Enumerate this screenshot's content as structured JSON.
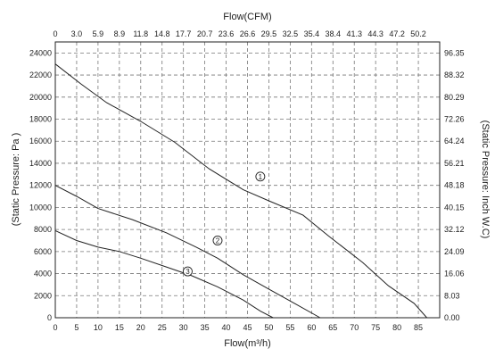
{
  "chart_data": {
    "type": "line",
    "title": "",
    "xlabel": "Flow(m³/h)",
    "x2label": "Flow(CFM)",
    "ylabel": "(Static Pressure: Pa )",
    "y2label": "(Static Pressure: Inch W.C)",
    "xlim": [
      0,
      90
    ],
    "ylim": [
      0,
      25000
    ],
    "grid": true,
    "x_ticks": [
      "0",
      "5",
      "10",
      "15",
      "20",
      "25",
      "30",
      "35",
      "40",
      "45",
      "50",
      "55",
      "60",
      "65",
      "70",
      "75",
      "80",
      "85"
    ],
    "x_tick_values": [
      0,
      5,
      10,
      15,
      20,
      25,
      30,
      35,
      40,
      45,
      50,
      55,
      60,
      65,
      70,
      75,
      80,
      85
    ],
    "x2_ticks": [
      "0",
      "3.0",
      "5.9",
      "8.9",
      "11.8",
      "14.8",
      "17.7",
      "20.7",
      "23.6",
      "26.6",
      "29.5",
      "32.5",
      "35.4",
      "38.4",
      "41.3",
      "44.3",
      "47.2",
      "50.2"
    ],
    "y_ticks": [
      "0",
      "2000",
      "4000",
      "6000",
      "8000",
      "10000",
      "12000",
      "14000",
      "16000",
      "18000",
      "20000",
      "22000",
      "24000"
    ],
    "y_tick_values": [
      0,
      2000,
      4000,
      6000,
      8000,
      10000,
      12000,
      14000,
      16000,
      18000,
      20000,
      22000,
      24000
    ],
    "y2_ticks": [
      "0.00",
      "8.03",
      "16.06",
      "24.09",
      "32.12",
      "40.15",
      "48.18",
      "56.21",
      "64.24",
      "72.26",
      "80.29",
      "88.32",
      "96.35"
    ],
    "series": [
      {
        "name": "①",
        "points": [
          [
            0,
            23000
          ],
          [
            6,
            21200
          ],
          [
            12,
            19500
          ],
          [
            20,
            17800
          ],
          [
            28,
            15900
          ],
          [
            36,
            13500
          ],
          [
            44,
            11600
          ],
          [
            50,
            10600
          ],
          [
            58,
            9300
          ],
          [
            64,
            7400
          ],
          [
            72,
            5000
          ],
          [
            78,
            2900
          ],
          [
            84,
            1300
          ],
          [
            87,
            0
          ]
        ]
      },
      {
        "name": "②",
        "points": [
          [
            0,
            12000
          ],
          [
            5,
            11000
          ],
          [
            10,
            9900
          ],
          [
            18,
            8900
          ],
          [
            26,
            7700
          ],
          [
            33,
            6400
          ],
          [
            38,
            5400
          ],
          [
            44,
            3900
          ],
          [
            50,
            2600
          ],
          [
            56,
            1300
          ],
          [
            62,
            0
          ]
        ]
      },
      {
        "name": "③",
        "points": [
          [
            0,
            7900
          ],
          [
            5,
            7000
          ],
          [
            10,
            6400
          ],
          [
            15,
            6000
          ],
          [
            20,
            5400
          ],
          [
            26,
            4600
          ],
          [
            32,
            3800
          ],
          [
            38,
            2800
          ],
          [
            44,
            1600
          ],
          [
            48,
            600
          ],
          [
            51,
            0
          ]
        ]
      }
    ],
    "markers": [
      {
        "label": "①",
        "x": 48,
        "y": 12800
      },
      {
        "label": "②",
        "x": 38,
        "y": 7000
      },
      {
        "label": "③",
        "x": 31,
        "y": 4200
      }
    ]
  }
}
